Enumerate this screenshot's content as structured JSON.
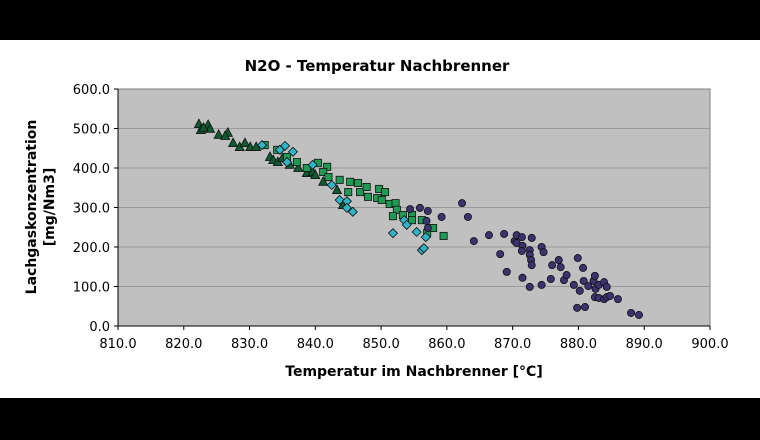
{
  "chart_data": {
    "type": "scatter",
    "title": "N2O - Temperatur Nachbrenner",
    "xlabel": "Temperatur im Nachbrenner [°C]",
    "ylabel": [
      "Lachgaskonzentration",
      "[mg/Nm3]"
    ],
    "xlim": [
      810,
      900
    ],
    "ylim": [
      0,
      600
    ],
    "xticks": [
      "810.0",
      "820.0",
      "830.0",
      "840.0",
      "850.0",
      "860.0",
      "870.0",
      "880.0",
      "890.0",
      "900.0"
    ],
    "yticks": [
      "0.0",
      "100.0",
      "200.0",
      "300.0",
      "400.0",
      "500.0",
      "600.0"
    ],
    "grid": "horizontal",
    "legend": "none",
    "plot_background": "#c0c0c0",
    "series": [
      {
        "marker": "triangle",
        "color": "#0f5a32",
        "points": [
          [
            822.3,
            511
          ],
          [
            823.7,
            509
          ],
          [
            822.6,
            496
          ],
          [
            824.0,
            499
          ],
          [
            825.3,
            484
          ],
          [
            826.7,
            489
          ],
          [
            826.3,
            481
          ],
          [
            827.5,
            463
          ],
          [
            828.5,
            453
          ],
          [
            829.3,
            463
          ],
          [
            830.1,
            453
          ],
          [
            831.0,
            453
          ],
          [
            833.1,
            428
          ],
          [
            833.6,
            420
          ],
          [
            834.3,
            415
          ],
          [
            836.1,
            408
          ],
          [
            837.4,
            400
          ],
          [
            838.7,
            387
          ],
          [
            839.6,
            390
          ],
          [
            841.2,
            365
          ],
          [
            843.3,
            344
          ],
          [
            844.2,
            306
          ],
          [
            823.0,
            502
          ],
          [
            835.0,
            425
          ],
          [
            840.0,
            382
          ]
        ]
      },
      {
        "marker": "square",
        "color": "#1f9a52",
        "points": [
          [
            832.3,
            458
          ],
          [
            834.2,
            446
          ],
          [
            835.7,
            428
          ],
          [
            837.2,
            415
          ],
          [
            838.7,
            400
          ],
          [
            840.4,
            413
          ],
          [
            841.8,
            403
          ],
          [
            841.2,
            390
          ],
          [
            842.0,
            377
          ],
          [
            843.7,
            370
          ],
          [
            845.3,
            365
          ],
          [
            846.5,
            362
          ],
          [
            845.0,
            339
          ],
          [
            846.8,
            339
          ],
          [
            847.8,
            352
          ],
          [
            849.7,
            347
          ],
          [
            850.6,
            339
          ],
          [
            848.0,
            327
          ],
          [
            849.4,
            324
          ],
          [
            850.1,
            319
          ],
          [
            851.3,
            309
          ],
          [
            852.2,
            311
          ],
          [
            852.4,
            294
          ],
          [
            851.8,
            278
          ],
          [
            853.3,
            281
          ],
          [
            854.7,
            281
          ],
          [
            856.2,
            268
          ],
          [
            857.9,
            248
          ],
          [
            859.5,
            228
          ],
          [
            857.0,
            235
          ],
          [
            854.7,
            268
          ]
        ]
      },
      {
        "marker": "diamond",
        "color": "#2fb4c8",
        "points": [
          [
            831.9,
            458
          ],
          [
            835.4,
            456
          ],
          [
            836.6,
            441
          ],
          [
            835.7,
            415
          ],
          [
            839.6,
            408
          ],
          [
            842.5,
            357
          ],
          [
            843.7,
            319
          ],
          [
            844.8,
            316
          ],
          [
            844.8,
            299
          ],
          [
            845.7,
            289
          ],
          [
            851.8,
            235
          ],
          [
            853.5,
            268
          ],
          [
            853.9,
            256
          ],
          [
            855.4,
            238
          ],
          [
            856.8,
            225
          ],
          [
            856.2,
            192
          ],
          [
            856.5,
            197
          ],
          [
            834.6,
            446
          ]
        ]
      },
      {
        "marker": "circle",
        "color": "#3b3370",
        "points": [
          [
            862.3,
            311
          ],
          [
            863.2,
            276
          ],
          [
            859.2,
            276
          ],
          [
            864.1,
            215
          ],
          [
            866.4,
            230
          ],
          [
            868.7,
            233
          ],
          [
            868.1,
            182
          ],
          [
            869.1,
            137
          ],
          [
            870.3,
            215
          ],
          [
            870.6,
            230
          ],
          [
            871.4,
            225
          ],
          [
            870.6,
            210
          ],
          [
            871.5,
            203
          ],
          [
            871.4,
            190
          ],
          [
            872.6,
            192
          ],
          [
            872.6,
            180
          ],
          [
            872.8,
            167
          ],
          [
            872.9,
            154
          ],
          [
            872.9,
            223
          ],
          [
            871.5,
            122
          ],
          [
            872.6,
            99
          ],
          [
            874.4,
            104
          ],
          [
            874.4,
            200
          ],
          [
            874.7,
            187
          ],
          [
            876.0,
            154
          ],
          [
            875.8,
            119
          ],
          [
            877.0,
            167
          ],
          [
            877.3,
            149
          ],
          [
            877.8,
            116
          ],
          [
            878.2,
            129
          ],
          [
            879.3,
            104
          ],
          [
            879.9,
            172
          ],
          [
            880.7,
            147
          ],
          [
            880.8,
            114
          ],
          [
            880.2,
            89
          ],
          [
            881.5,
            101
          ],
          [
            882.3,
            114
          ],
          [
            882.5,
            127
          ],
          [
            882.6,
            94
          ],
          [
            883.1,
            104
          ],
          [
            883.9,
            111
          ],
          [
            884.3,
            99
          ],
          [
            882.5,
            73
          ],
          [
            883.1,
            71
          ],
          [
            883.9,
            68
          ],
          [
            884.3,
            73
          ],
          [
            884.8,
            76
          ],
          [
            886.0,
            68
          ],
          [
            879.8,
            46
          ],
          [
            881.0,
            48
          ],
          [
            888.0,
            33
          ],
          [
            889.2,
            28
          ],
          [
            854.4,
            296
          ],
          [
            855.9,
            299
          ],
          [
            857.1,
            291
          ],
          [
            856.9,
            266
          ],
          [
            857.1,
            248
          ]
        ]
      }
    ]
  }
}
